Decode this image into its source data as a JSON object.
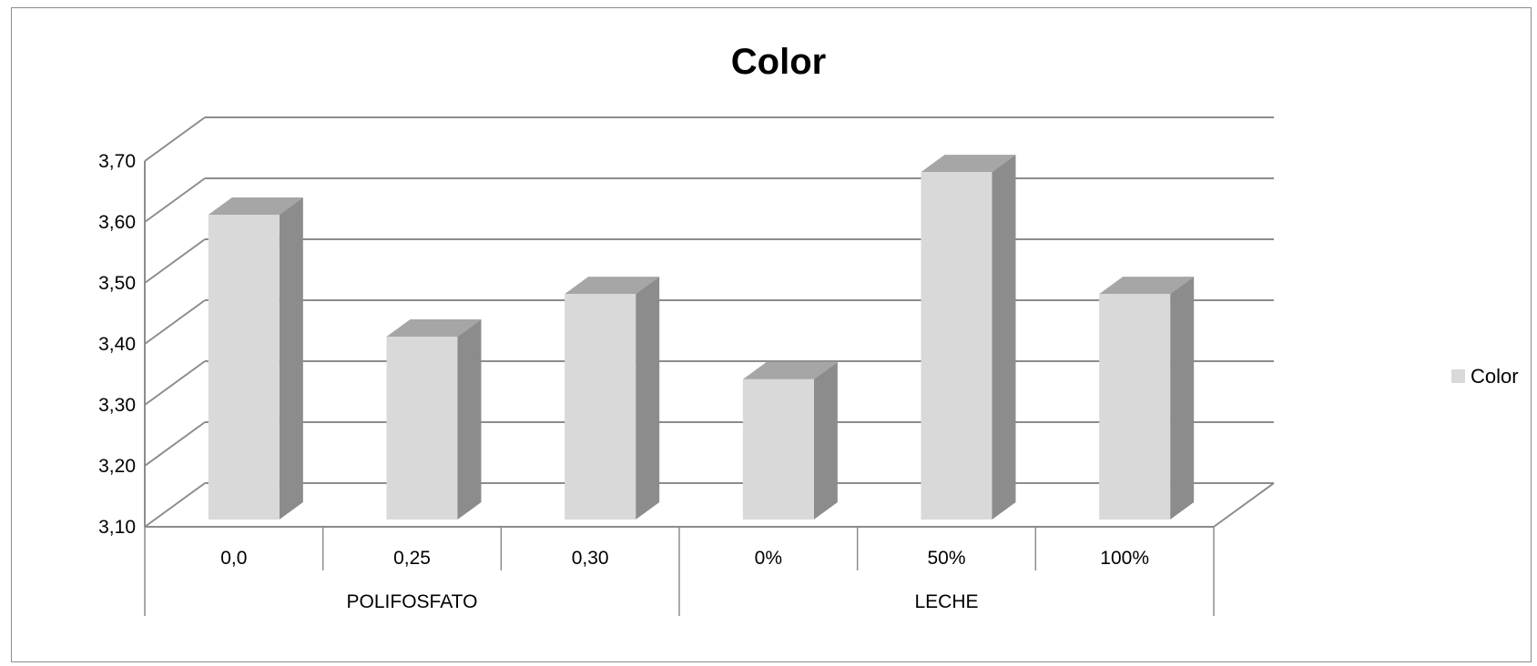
{
  "chart_data": {
    "type": "bar",
    "title": "Color",
    "xlabel": "",
    "ylabel": "",
    "ylim": [
      3.1,
      3.7
    ],
    "y_ticks": [
      "3,10",
      "3,20",
      "3,30",
      "3,40",
      "3,50",
      "3,60",
      "3,70"
    ],
    "y_tick_values": [
      3.1,
      3.2,
      3.3,
      3.4,
      3.5,
      3.6,
      3.7
    ],
    "categories": [
      "0,0",
      "0,25",
      "0,30",
      "0%",
      "50%",
      "100%"
    ],
    "groups": [
      {
        "label": "POLIFOSFATO",
        "categories": [
          "0,0",
          "0,25",
          "0,30"
        ]
      },
      {
        "label": "LECHE",
        "categories": [
          "0%",
          "50%",
          "100%"
        ]
      }
    ],
    "series": [
      {
        "name": "Color",
        "values": [
          3.6,
          3.4,
          3.47,
          3.33,
          3.67,
          3.47
        ]
      }
    ],
    "grid": true,
    "legend": "right",
    "style": "3d-column",
    "colors": {
      "bar_front": "#d9d9d9",
      "bar_side": "#8c8c8c",
      "bar_top": "#a6a6a6",
      "grid": "#8c8c8c"
    }
  }
}
